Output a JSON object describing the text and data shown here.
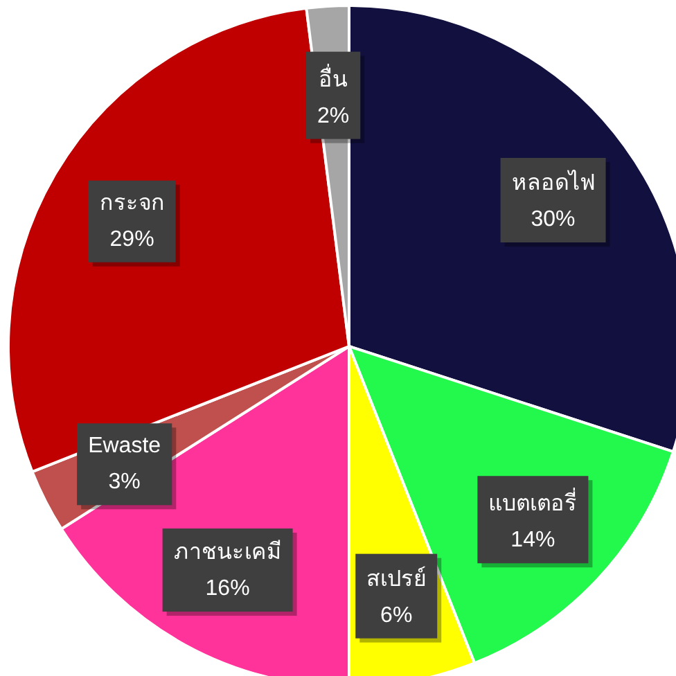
{
  "chart_data": {
    "type": "pie",
    "categories": [
      "หลอดไฟ",
      "แบตเตอรี่",
      "สเปรย์",
      "ภาชนะเคมี",
      "Ewaste",
      "กระจก",
      "อื่น"
    ],
    "values": [
      30,
      14,
      6,
      16,
      3,
      29,
      2
    ],
    "colors": [
      "#12103f",
      "#22f94c",
      "#ffff00",
      "#ff3399",
      "#c0504d",
      "#c00000",
      "#a6a6a6"
    ],
    "value_labels": [
      "30%",
      "14%",
      "6%",
      "16%",
      "3%",
      "29%",
      "2%"
    ]
  }
}
